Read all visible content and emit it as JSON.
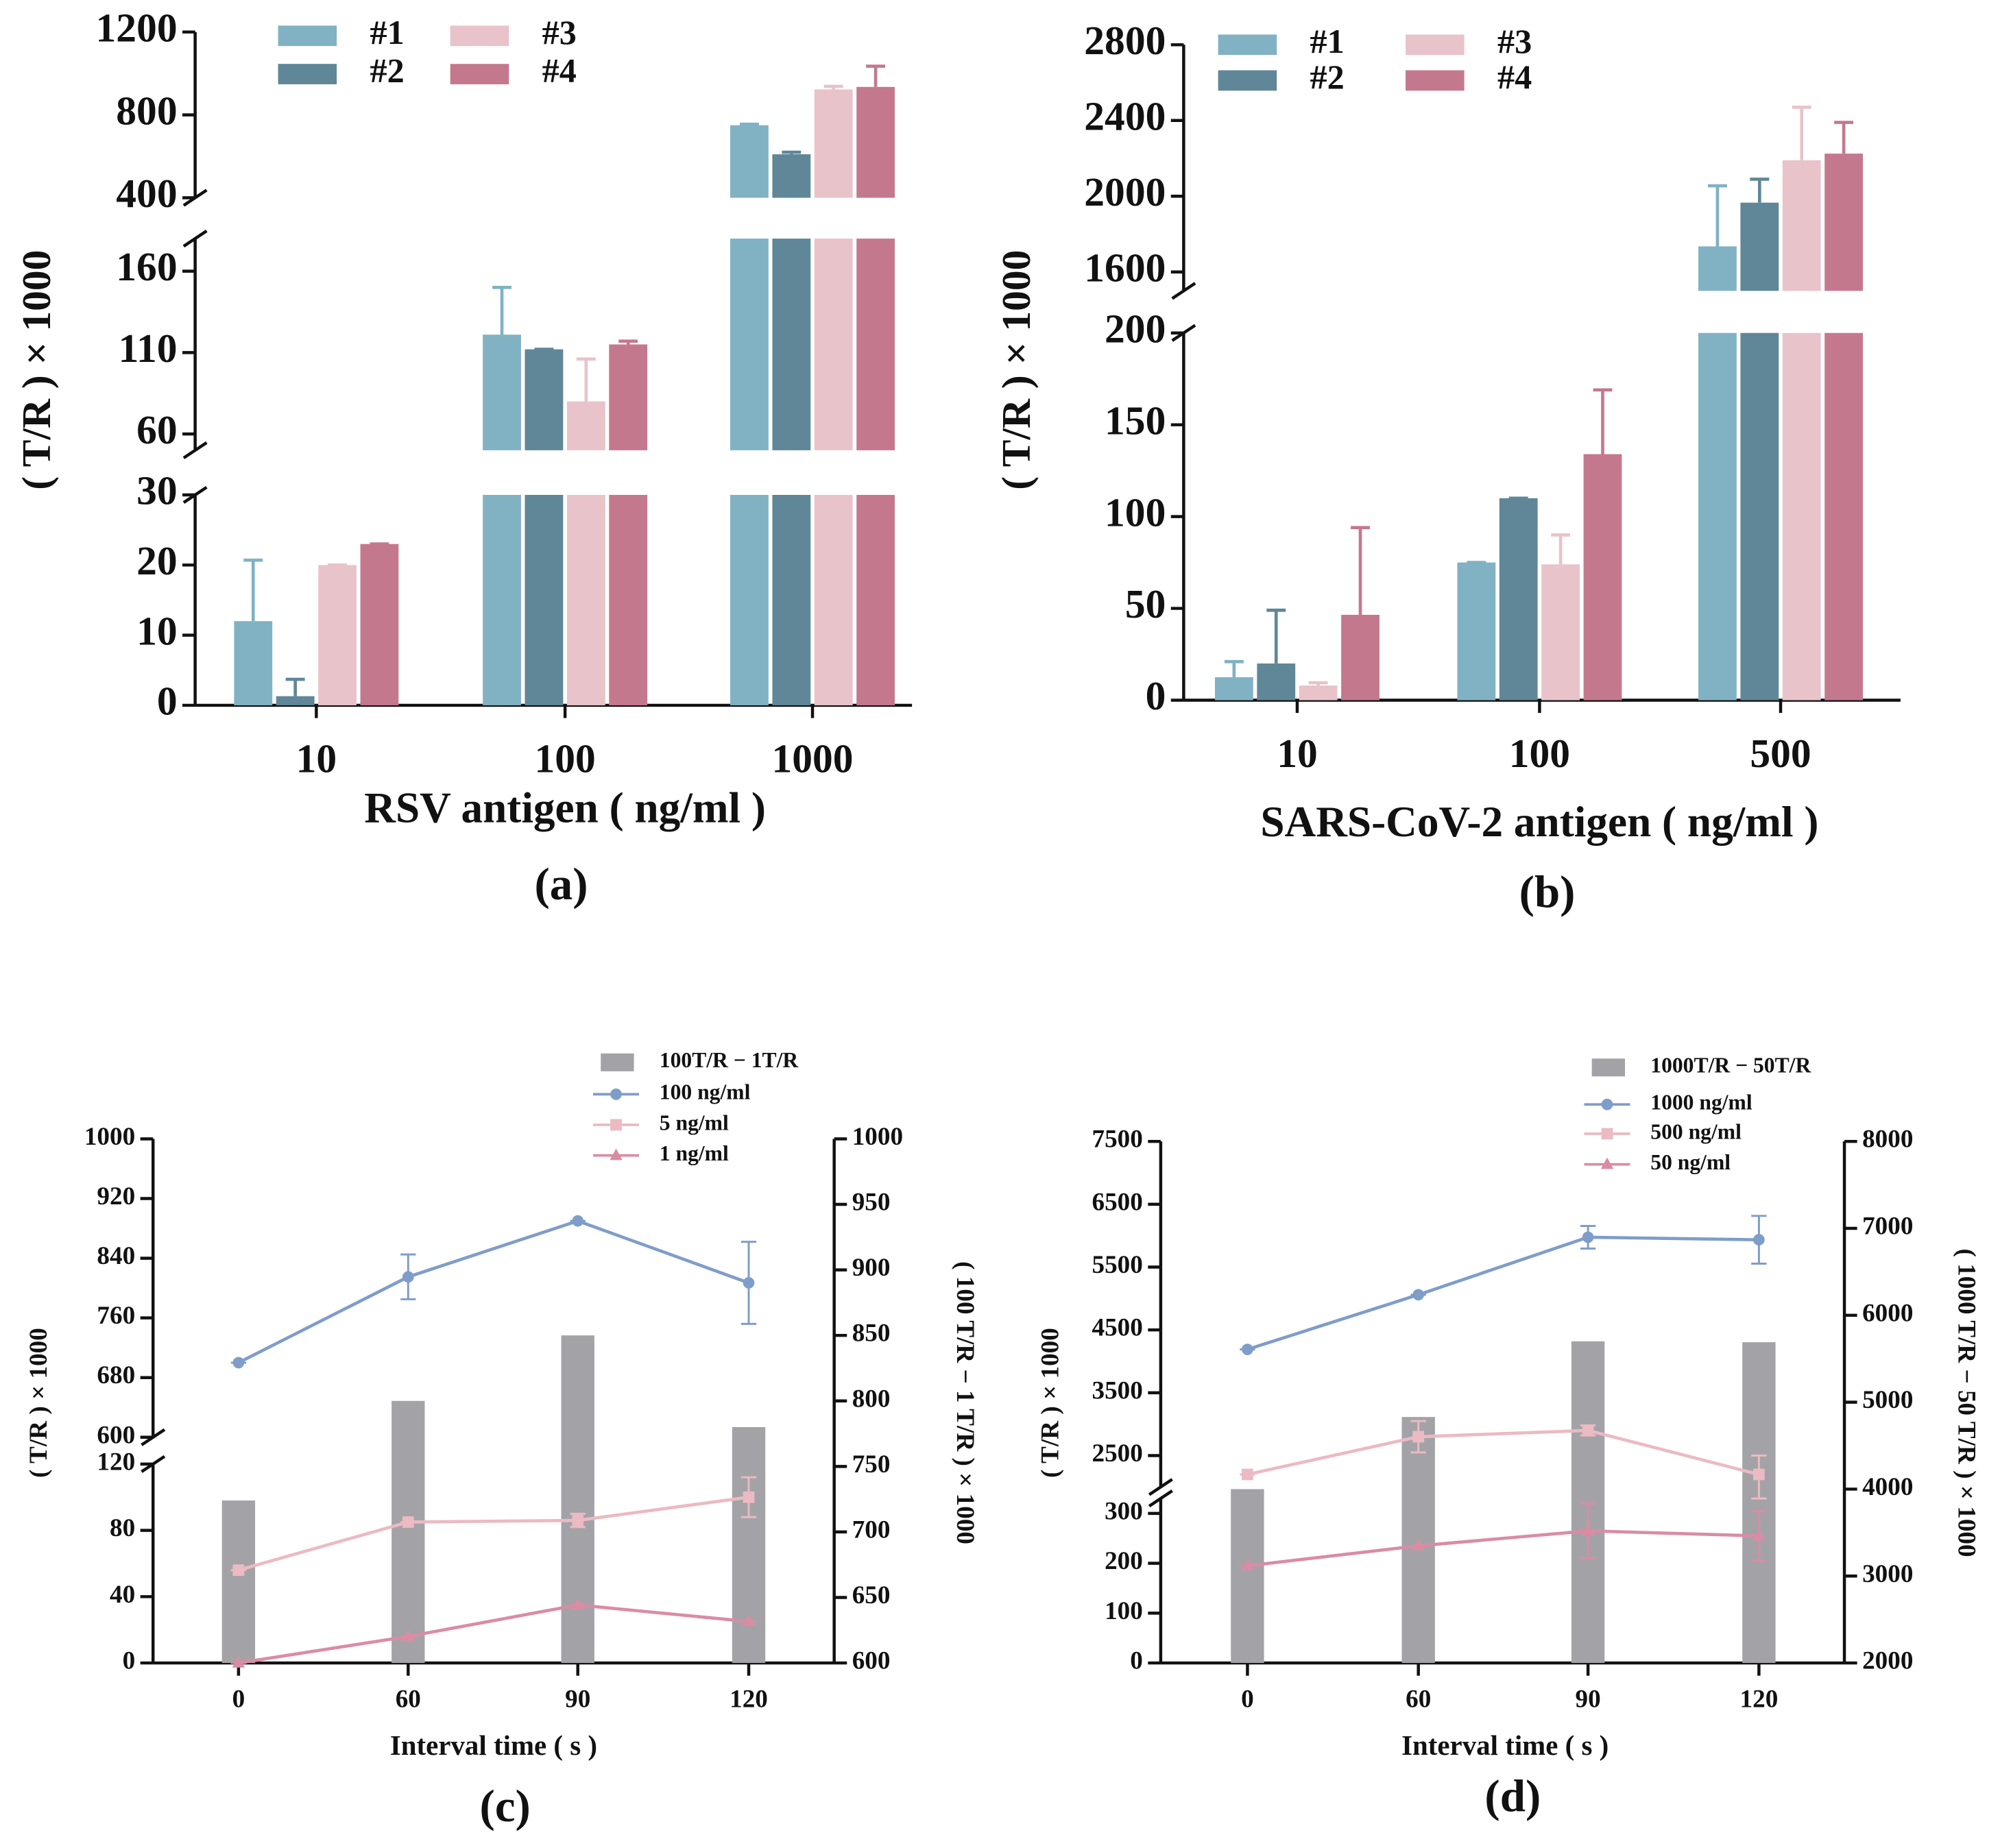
{
  "chart_data": [
    {
      "type": "bar",
      "panel": "(a)",
      "xlabel": "RSV antigen ( ng/ml )",
      "ylabel": "( T/R ) × 1000",
      "categories": [
        "10",
        "100",
        "1000"
      ],
      "y_segments": [
        {
          "ylim": [
            0,
            30
          ],
          "yticks": [
            0,
            10,
            20,
            30
          ]
        },
        {
          "ylim": [
            50,
            180
          ],
          "yticks": [
            60,
            110,
            160
          ]
        },
        {
          "ylim": [
            400,
            1200
          ],
          "yticks": [
            400,
            800,
            1200
          ]
        }
      ],
      "legend": "top-left",
      "series": [
        {
          "name": "#1",
          "color": "#80b2c4",
          "values": [
            12,
            121,
            750
          ],
          "errors": [
            8.7,
            29,
            5
          ]
        },
        {
          "name": "#2",
          "color": "#5f8798",
          "values": [
            1.3,
            112,
            610
          ],
          "errors": [
            2.4,
            0,
            10
          ]
        },
        {
          "name": "#3",
          "color": "#e8c3ca",
          "values": [
            20,
            80,
            923
          ],
          "errors": [
            0,
            26,
            15
          ]
        },
        {
          "name": "#4",
          "color": "#c4788e",
          "values": [
            23,
            115,
            935
          ],
          "errors": [
            0,
            2,
            100
          ]
        }
      ]
    },
    {
      "type": "bar",
      "panel": "(b)",
      "xlabel": "SARS-CoV-2 antigen ( ng/ml )",
      "ylabel": "( T/R ) × 1000",
      "categories": [
        "10",
        "100",
        "500"
      ],
      "y_segments": [
        {
          "ylim": [
            0,
            200
          ],
          "yticks": [
            0,
            50,
            100,
            150,
            200
          ]
        },
        {
          "ylim": [
            1500,
            2800
          ],
          "yticks": [
            1600,
            2000,
            2400,
            2800
          ]
        }
      ],
      "legend": "top-left",
      "series": [
        {
          "name": "#1",
          "color": "#80b2c4",
          "values": [
            12.5,
            75,
            1735
          ],
          "errors": [
            8.5,
            0,
            320
          ]
        },
        {
          "name": "#2",
          "color": "#5f8798",
          "values": [
            20,
            110,
            1966
          ],
          "errors": [
            29,
            0,
            124
          ]
        },
        {
          "name": "#3",
          "color": "#e8c3ca",
          "values": [
            8,
            74,
            2190
          ],
          "errors": [
            1.5,
            16,
            280
          ]
        },
        {
          "name": "#4",
          "color": "#c4788e",
          "values": [
            46.5,
            134,
            2225
          ],
          "errors": [
            47.5,
            35,
            165
          ]
        }
      ]
    },
    {
      "type": "combo",
      "panel": "(c)",
      "xlabel": "Interval time ( s )",
      "ylabel": "( T/R ) × 1000",
      "y2label": "( 100 T/R − 1 T/R ) × 1000",
      "categories": [
        "0",
        "60",
        "90",
        "120"
      ],
      "y_segments": [
        {
          "ylim": [
            0,
            120
          ],
          "yticks": [
            0,
            40,
            80,
            120
          ]
        },
        {
          "ylim": [
            600,
            1000
          ],
          "yticks": [
            600,
            680,
            760,
            840,
            920,
            1000
          ]
        }
      ],
      "y2lim": [
        600,
        1000
      ],
      "y2ticks": [
        600,
        650,
        700,
        750,
        800,
        850,
        900,
        950,
        1000
      ],
      "legend": "top-right",
      "series": [
        {
          "name": "100T/R − 1T/R",
          "type": "bar",
          "axis": "y2",
          "color": "#a3a3a7",
          "values": [
            724,
            800,
            850,
            780
          ]
        },
        {
          "name": "100 ng/ml",
          "type": "line",
          "marker": "circle",
          "color": "#7f9dc9",
          "values": [
            700,
            815,
            890,
            807
          ],
          "errors": [
            0,
            30,
            0,
            55
          ]
        },
        {
          "name": "5 ng/ml",
          "type": "line",
          "marker": "square",
          "color": "#ebbac3",
          "values": [
            56,
            85,
            86,
            100
          ],
          "errors": [
            0,
            0,
            4,
            12
          ]
        },
        {
          "name": "1 ng/ml",
          "type": "line",
          "marker": "triangle",
          "color": "#da8ca4",
          "values": [
            0,
            16,
            35,
            25
          ],
          "errors": [
            0,
            0,
            0,
            0
          ]
        }
      ]
    },
    {
      "type": "combo",
      "panel": "(d)",
      "xlabel": "Interval time ( s )",
      "ylabel": "( T/R ) × 1000",
      "y2label": "( 1000 T/R − 50 T/R ) × 1000",
      "categories": [
        "0",
        "60",
        "90",
        "120"
      ],
      "y_segments": [
        {
          "ylim": [
            0,
            330
          ],
          "yticks": [
            0,
            100,
            200,
            300
          ]
        },
        {
          "ylim": [
            2000,
            7500
          ],
          "yticks": [
            2500,
            3500,
            4500,
            5500,
            6500,
            7500
          ]
        }
      ],
      "y2lim": [
        2000,
        8000
      ],
      "y2ticks": [
        2000,
        3000,
        4000,
        5000,
        6000,
        7000,
        8000
      ],
      "legend": "top-right",
      "series": [
        {
          "name": "1000T/R − 50T/R",
          "type": "bar",
          "axis": "y2",
          "color": "#a3a3a7",
          "values": [
            4000,
            4830,
            5700,
            5690
          ]
        },
        {
          "name": "1000 ng/ml",
          "type": "line",
          "marker": "circle",
          "color": "#7f9dc9",
          "values": [
            4190,
            5060,
            5975,
            5935
          ],
          "errors": [
            0,
            0,
            180,
            380
          ]
        },
        {
          "name": "500 ng/ml",
          "type": "line",
          "marker": "square",
          "color": "#ebbac3",
          "values": [
            2200,
            2800,
            2900,
            2200
          ],
          "errors": [
            0,
            250,
            80,
            300
          ]
        },
        {
          "name": "50 ng/ml",
          "type": "line",
          "marker": "triangle",
          "color": "#da8ca4",
          "values": [
            195,
            235,
            265,
            255
          ],
          "errors": [
            0,
            0,
            55,
            50
          ]
        }
      ]
    }
  ]
}
